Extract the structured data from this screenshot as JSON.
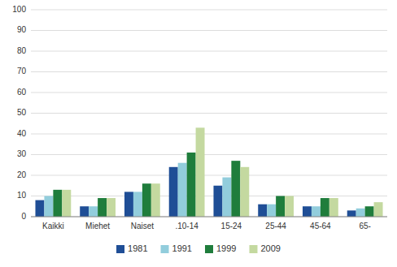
{
  "chart_data": {
    "type": "bar",
    "categories": [
      "Kaikki",
      "Miehet",
      "Naiset",
      ".10-14",
      "15-24",
      "25-44",
      "45-64",
      "65-"
    ],
    "series": [
      {
        "name": "1981",
        "color": "#1F4E96",
        "values": [
          8,
          5,
          12,
          24,
          15,
          6,
          5,
          3
        ]
      },
      {
        "name": "1991",
        "color": "#92CDDC",
        "values": [
          10,
          5,
          12,
          26,
          19,
          6,
          5,
          4
        ]
      },
      {
        "name": "1999",
        "color": "#1F7D3C",
        "values": [
          13,
          9,
          16,
          31,
          27,
          10,
          9,
          5
        ]
      },
      {
        "name": "2009",
        "color": "#C4D9A0",
        "values": [
          13,
          9,
          16,
          43,
          24,
          10,
          9,
          7
        ]
      }
    ],
    "ylim": [
      0,
      100
    ],
    "yticks": [
      0,
      10,
      20,
      30,
      40,
      50,
      60,
      70,
      80,
      90,
      100
    ],
    "grid": true,
    "legend": "bottom"
  }
}
